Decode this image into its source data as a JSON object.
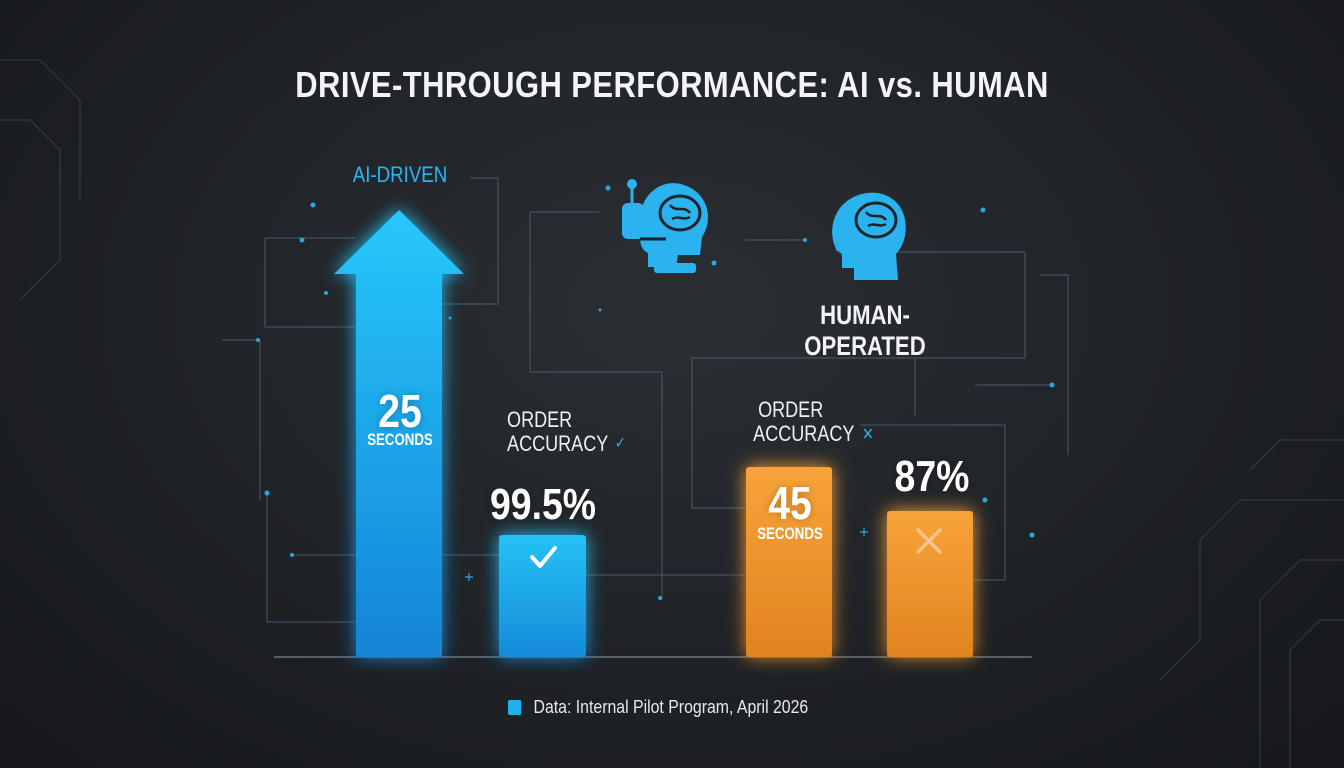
{
  "title": "DRIVE-THROUGH PERFORMANCE: AI vs. HUMAN",
  "colors": {
    "ai": "#1fb2ee",
    "human": "#f0962a",
    "background": "#1f2226"
  },
  "icons": {
    "ai": "robot-head-brain-icon",
    "human": "human-head-brain-icon",
    "check": "check-icon",
    "cross": "cross-icon"
  },
  "series_labels": {
    "ai": "AI-DRIVEN",
    "human": "HUMAN-OPERATED"
  },
  "metric_labels": {
    "ai_accuracy": [
      "ORDER",
      "ACCURACY"
    ],
    "human_accuracy": [
      "ORDER",
      "ACCURACY"
    ]
  },
  "check_mark": "✓",
  "cross_mark": "×",
  "chart_data": {
    "type": "bar",
    "title": "DRIVE-THROUGH PERFORMANCE: AI vs. HUMAN",
    "series": [
      {
        "name": "AI-DRIVEN",
        "bars": [
          {
            "metric": "time",
            "value": 25,
            "label": "25",
            "unit": "SECONDS",
            "shape": "arrow"
          },
          {
            "metric": "accuracy",
            "value": 99.5,
            "label": "99.5%",
            "icon": "check-icon"
          }
        ]
      },
      {
        "name": "HUMAN-OPERATED",
        "bars": [
          {
            "metric": "time",
            "value": 45,
            "label": "45",
            "unit": "SECONDS"
          },
          {
            "metric": "accuracy",
            "value": 87,
            "label": "87%",
            "icon": "cross-icon"
          }
        ]
      }
    ]
  },
  "footer": {
    "source": "Data: Internal Pilot Program, April 2026"
  }
}
